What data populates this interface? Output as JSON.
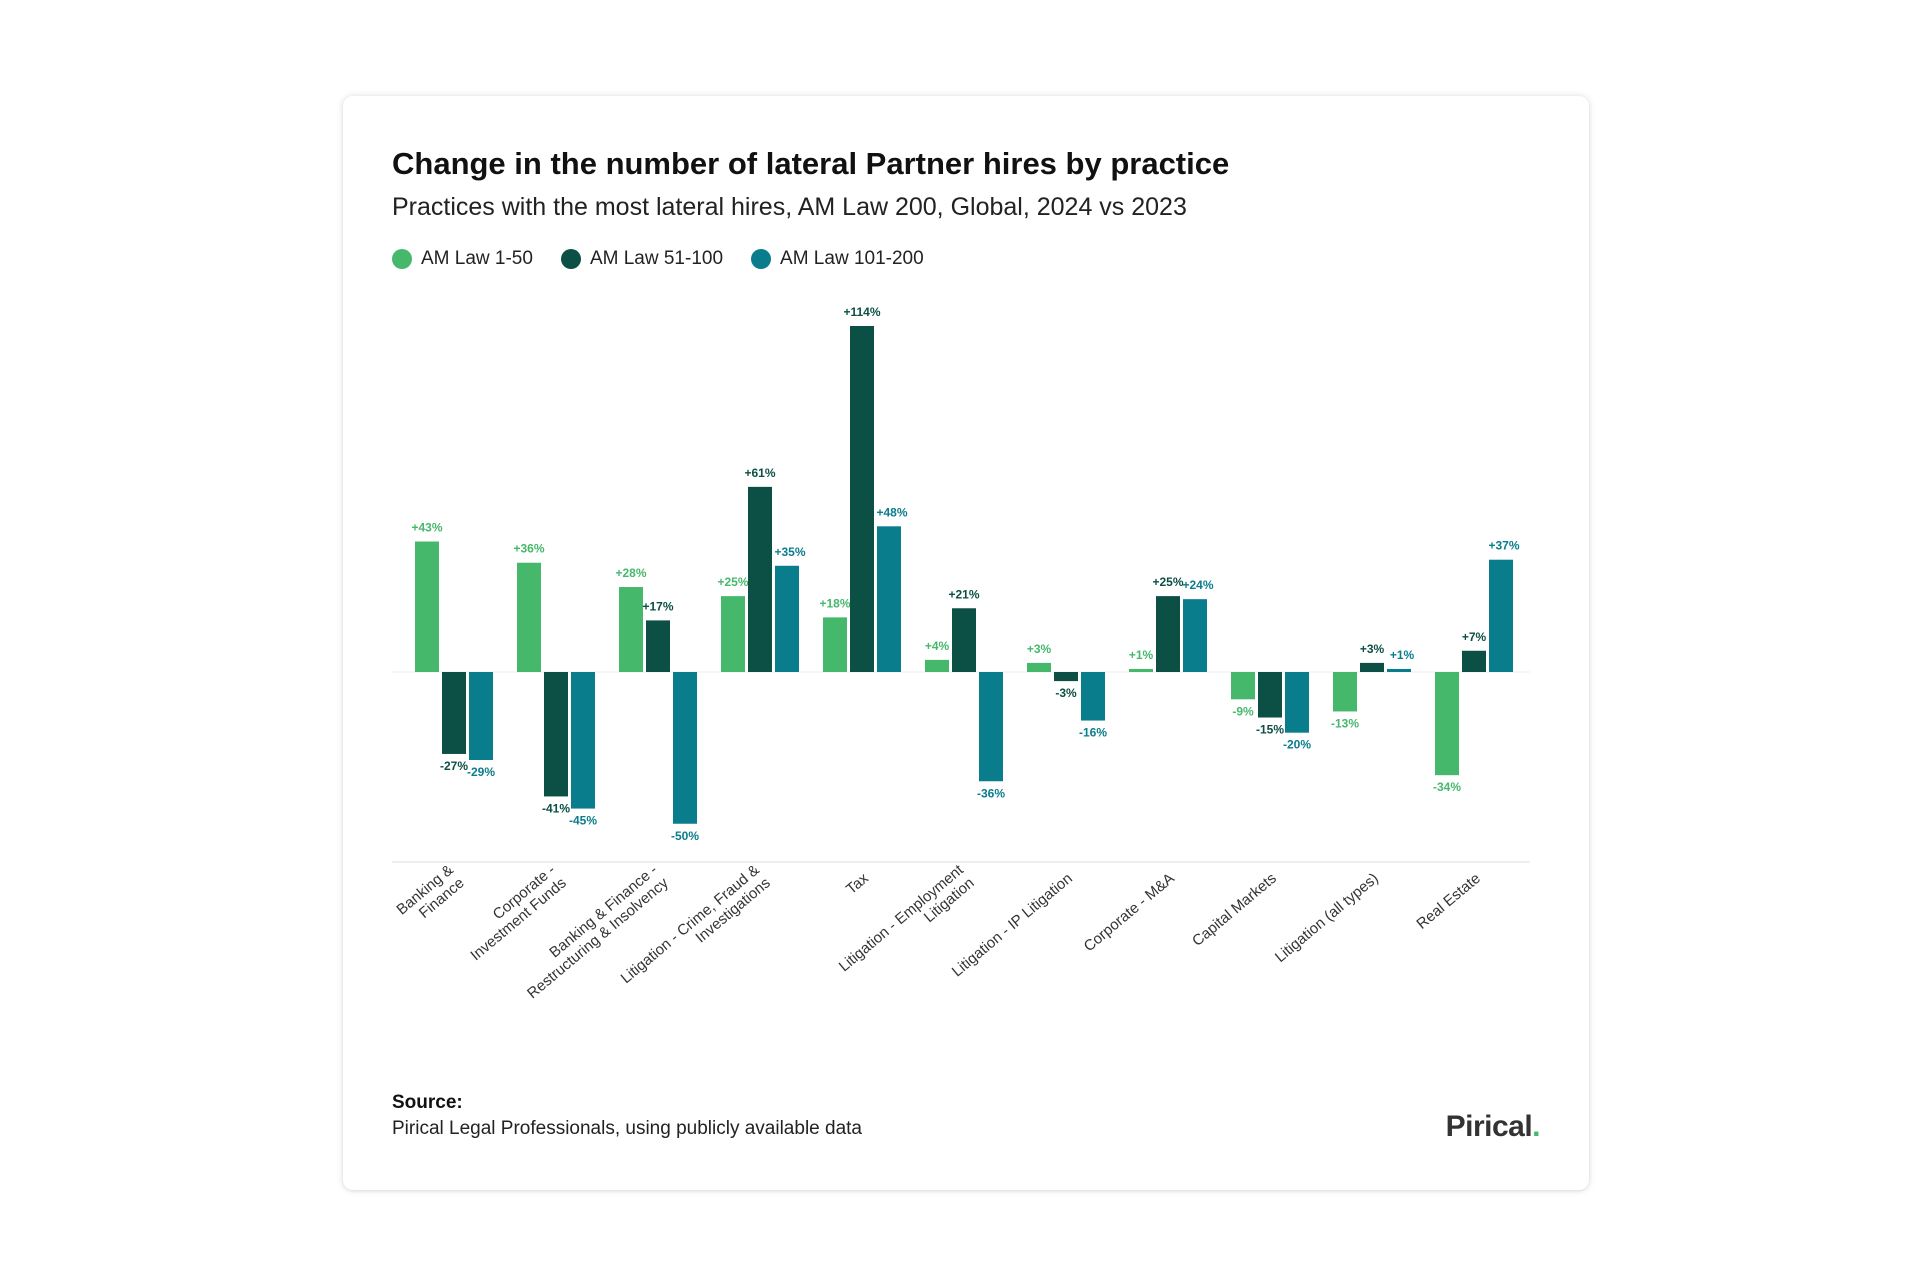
{
  "title": "Change in the number of lateral Partner hires by practice",
  "subtitle": "Practices with the most lateral hires, AM Law 200, Global, 2024 vs 2023",
  "source": {
    "label": "Source:",
    "text": "Pirical Legal Professionals, using publicly available data"
  },
  "logo": {
    "text": "Pirical",
    "dot": "."
  },
  "colors": {
    "am_law_1_50": "#46b86c",
    "am_law_51_100": "#0b4f45",
    "am_law_101_200": "#0a7d8c"
  },
  "chart_data": {
    "type": "bar",
    "title": "Change in the number of lateral Partner hires by practice",
    "subtitle": "Practices with the most lateral hires, AM Law 200, Global, 2024 vs 2023",
    "xlabel": "",
    "ylabel": "",
    "ylim": [
      -50,
      114
    ],
    "grid": false,
    "legend_position": "top-left",
    "categories": [
      "Banking & Finance",
      "Corporate - Investment Funds",
      "Banking & Finance - Restructuring & Insolvency",
      "Litigation - Crime, Fraud & Investigations",
      "Tax",
      "Litigation - Employment Litigation",
      "Litigation - IP Litigation",
      "Corporate - M&A",
      "Capital Markets",
      "Litigation (all types)",
      "Real Estate"
    ],
    "category_lines": [
      [
        "Banking &",
        "Finance"
      ],
      [
        "Corporate -",
        "Investment Funds"
      ],
      [
        "Banking & Finance -",
        "Restructuring & Insolvency"
      ],
      [
        "Litigation - Crime, Fraud &",
        "Investigations"
      ],
      [
        "Tax"
      ],
      [
        "Litigation - Employment",
        "Litigation"
      ],
      [
        "Litigation - IP Litigation"
      ],
      [
        "Corporate - M&A"
      ],
      [
        "Capital Markets"
      ],
      [
        "Litigation (all types)"
      ],
      [
        "Real Estate"
      ]
    ],
    "series": [
      {
        "name": "AM Law 1-50",
        "color": "#46b86c",
        "values": [
          43,
          36,
          28,
          25,
          18,
          4,
          3,
          1,
          -9,
          -13,
          -34
        ],
        "labels": [
          "+43%",
          "+36%",
          "+28%",
          "+25%",
          "+18%",
          "+4%",
          "+3%",
          "+1%",
          "-9%",
          "-13%",
          "-34%"
        ]
      },
      {
        "name": "AM Law 51-100",
        "color": "#0b4f45",
        "values": [
          -27,
          -41,
          17,
          61,
          114,
          21,
          -3,
          25,
          -15,
          3,
          7
        ],
        "labels": [
          "-27%",
          "-41%",
          "+17%",
          "+61%",
          "+114%",
          "+21%",
          "-3%",
          "+25%",
          "-15%",
          "+3%",
          "+7%"
        ]
      },
      {
        "name": "AM Law 101-200",
        "color": "#0a7d8c",
        "values": [
          -29,
          -45,
          -50,
          35,
          48,
          -36,
          -16,
          24,
          -20,
          1,
          37
        ],
        "labels": [
          "-29%",
          "-45%",
          "-50%",
          "+35%",
          "+48%",
          "-36%",
          "-16%",
          "+24%",
          "-20%",
          "+1%",
          "+37%"
        ]
      }
    ]
  }
}
